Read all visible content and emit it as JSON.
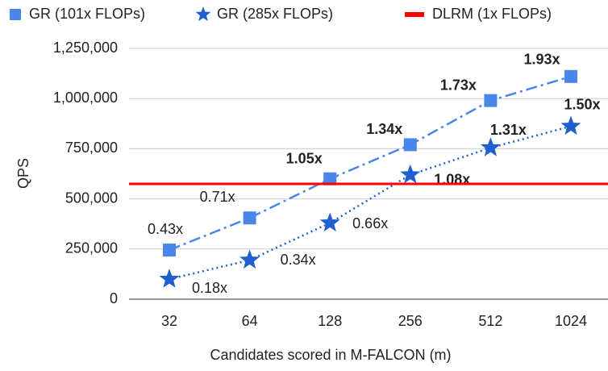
{
  "chart_data": {
    "type": "line",
    "x_label": "Candidates scored in M-FALCON (m)",
    "y_label": "QPS",
    "categories": [
      "32",
      "64",
      "128",
      "256",
      "512",
      "1024"
    ],
    "ylim": [
      0,
      1250000
    ],
    "yticks": [
      0,
      {
        "value": 250000,
        "label": "250,000"
      },
      {
        "value": 500000,
        "label": "500,000"
      },
      {
        "value": 750000,
        "label": "750,000"
      },
      {
        "value": 1000000,
        "label": "1,000,000"
      },
      {
        "value": 1250000,
        "label": "1,250,000"
      }
    ],
    "grid": true,
    "legend": "top",
    "series": [
      {
        "name": "GR (101x FLOPs)",
        "color": "#4a86e8",
        "marker": "square",
        "dash": "dashdot",
        "values": [
          245000,
          405000,
          600000,
          770000,
          990000,
          1110000
        ],
        "point_labels": [
          "0.43x",
          "0.71x",
          "1.05x",
          "1.34x",
          "1.73x",
          "1.93x"
        ]
      },
      {
        "name": "GR (285x FLOPs)",
        "color": "#1f5fcf",
        "marker": "star",
        "dash": "dotted",
        "values": [
          100000,
          195000,
          380000,
          620000,
          755000,
          862000
        ],
        "point_labels": [
          "0.18x",
          "0.34x",
          "0.66x",
          "1.08x",
          "1.31x",
          "1.50x"
        ]
      },
      {
        "name": "DLRM (1x FLOPs)",
        "color": "#ff0000",
        "marker": "none",
        "dash": "solid",
        "values": [
          575000,
          575000,
          575000,
          575000,
          575000,
          575000
        ]
      }
    ]
  }
}
